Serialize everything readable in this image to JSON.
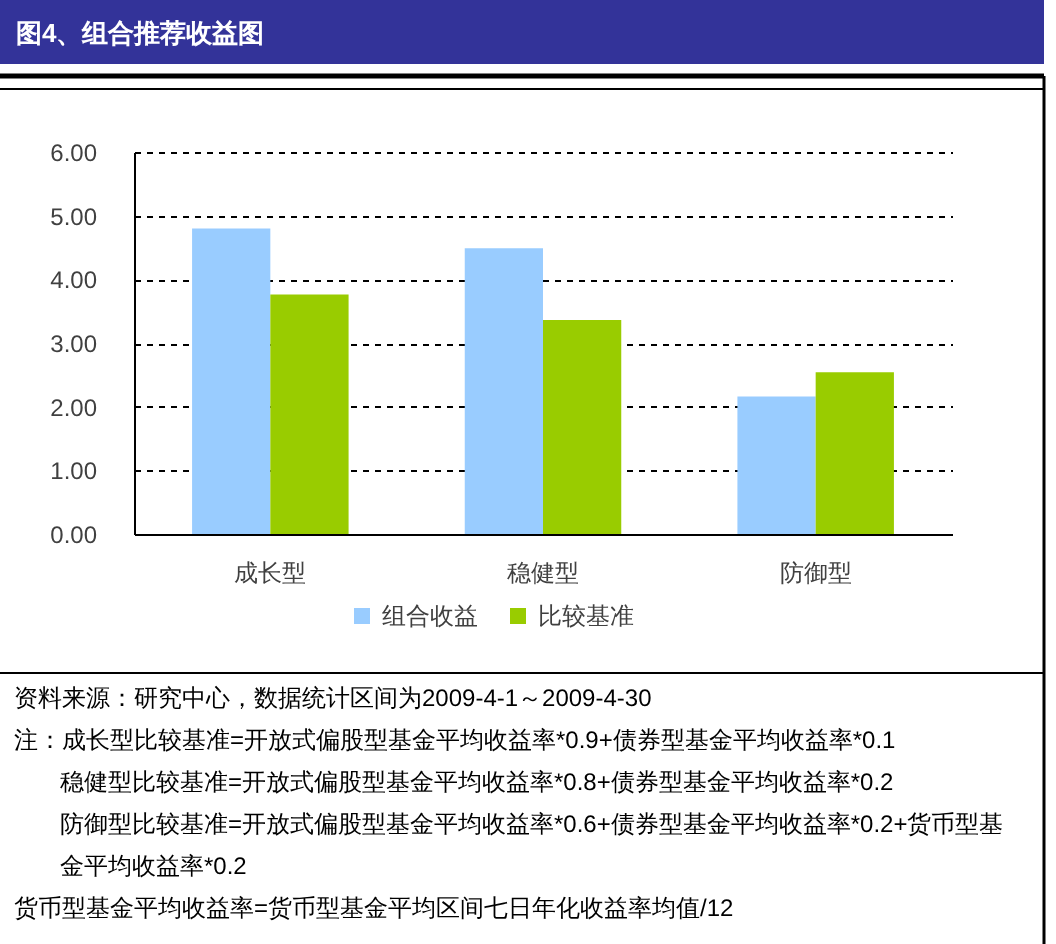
{
  "chart_data": {
    "type": "bar",
    "title": "图4、组合推荐收益图",
    "categories": [
      "成长型",
      "稳健型",
      "防御型"
    ],
    "series": [
      {
        "name": "组合收益",
        "color": "#99ccff",
        "values": [
          4.8,
          4.49,
          2.16
        ]
      },
      {
        "name": "比较基准",
        "color": "#99cc00",
        "values": [
          3.76,
          3.36,
          2.54
        ]
      }
    ],
    "ylim": [
      0,
      6
    ],
    "yticks": [
      {
        "value": 0,
        "label": "0.00"
      },
      {
        "value": 1,
        "label": "1.00"
      },
      {
        "value": 2,
        "label": "2.00"
      },
      {
        "value": 3,
        "label": "3.00"
      },
      {
        "value": 4,
        "label": "4.00"
      },
      {
        "value": 5,
        "label": "5.00"
      },
      {
        "value": 6,
        "label": "6.00"
      }
    ],
    "grid": "y",
    "legend": "bottom",
    "annotations": [
      "资料来源：研究中心，数据统计区间为2009-4-1～2009-4-30",
      "注：成长型比较基准=开放式偏股型基金平均收益率*0.9+债券型基金平均收益率*0.1",
      "稳健型比较基准=开放式偏股型基金平均收益率*0.8+债券型基金平均收益率*0.2",
      "防御型比较基准=开放式偏股型基金平均收益率*0.6+债券型基金平均收益率*0.2+货币型基金平均收益率*0.2",
      "货币型基金平均收益率=货币型基金平均区间七日年化收益率均值/12"
    ]
  }
}
